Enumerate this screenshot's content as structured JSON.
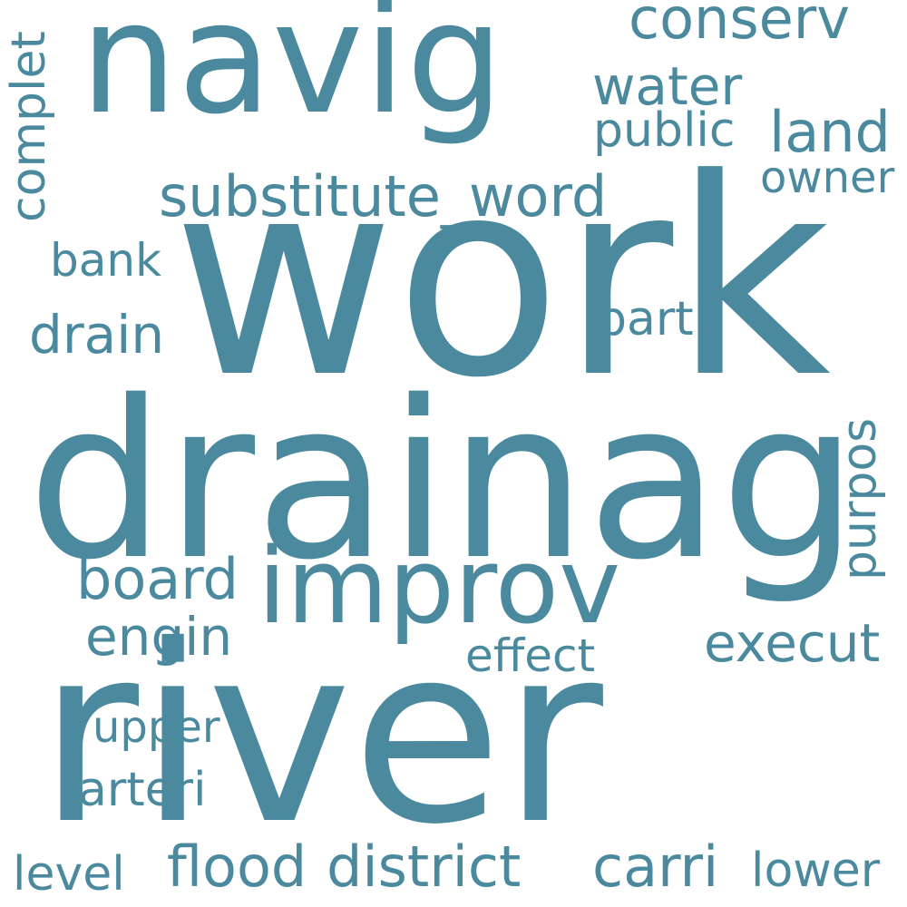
{
  "colors": {
    "word": "#4b8a9e",
    "background": "#ffffff"
  },
  "words": {
    "work": "work",
    "drainag": "drainag",
    "river": "river",
    "navig": "navig",
    "improv": "improv",
    "substitute_word": "substitute_word",
    "conserv": "conserv",
    "water": "water",
    "public": "public",
    "land": "land",
    "owner": "owner",
    "complet": "complet",
    "bank": "bank",
    "drain": "drain",
    "part": "part",
    "purpos": "purpos",
    "board": "board",
    "engin": "engin",
    "effect": "effect",
    "execut": "execut",
    "upper": "upper",
    "arteri": "arteri",
    "level": "level",
    "flood": "flood",
    "district": "district",
    "carri": "carri",
    "lower": "lower"
  }
}
